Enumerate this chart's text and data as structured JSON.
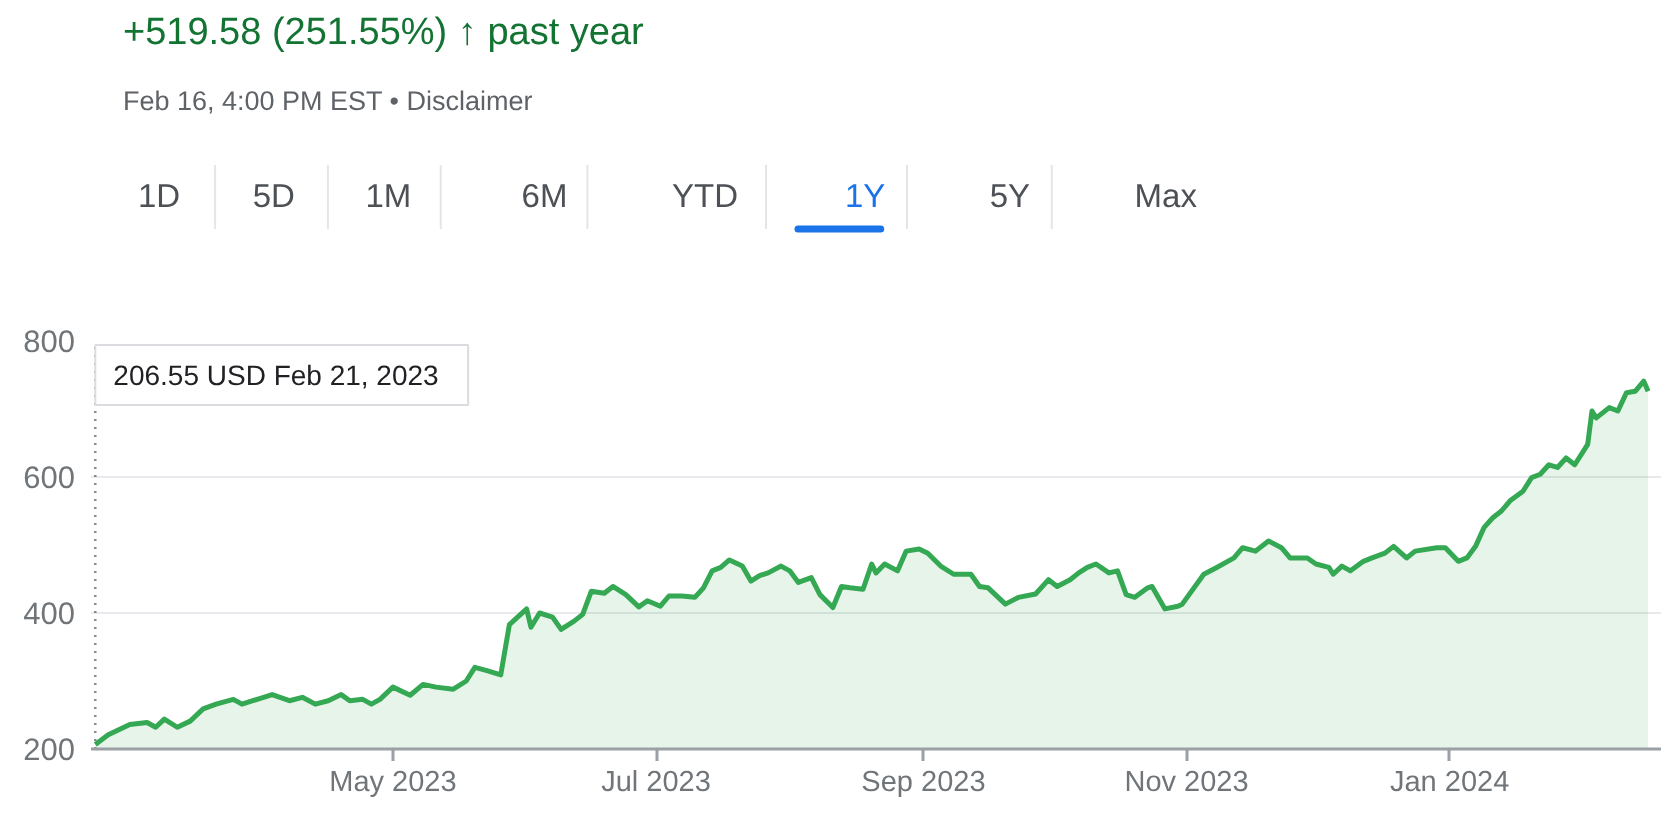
{
  "chart_data": {
    "type": "area",
    "title": "+519.58 (251.55%) ↑ past year",
    "subtitle": "Feb 16, 4:00 PM EST • Disclaimer",
    "annotations": [
      "1D",
      "5D",
      "1M",
      "6M",
      "YTD",
      "1Y",
      "5Y",
      "Max"
    ],
    "ref_lines": [
      {
        "axis": "x",
        "value": "2023-02-21",
        "label": "206.55 USD  Feb 21, 2023",
        "color": "#80868b",
        "line_style": "dotted"
      }
    ],
    "series": [
      {
        "color": "#34a853",
        "x": [
          "2023-02-21",
          "2023-02-24",
          "2023-03-01",
          "2023-03-05",
          "2023-03-07",
          "2023-03-09",
          "2023-03-12",
          "2023-03-15",
          "2023-03-18",
          "2023-03-21",
          "2023-03-25",
          "2023-03-27",
          "2023-04-01",
          "2023-04-03",
          "2023-04-07",
          "2023-04-10",
          "2023-04-13",
          "2023-04-16",
          "2023-04-19",
          "2023-04-21",
          "2023-04-24",
          "2023-04-26",
          "2023-04-28",
          "2023-05-01",
          "2023-05-05",
          "2023-05-08",
          "2023-05-11",
          "2023-05-15",
          "2023-05-18",
          "2023-05-20",
          "2023-05-23",
          "2023-05-26",
          "2023-05-28",
          "2023-06-01",
          "2023-06-02",
          "2023-06-04",
          "2023-06-07",
          "2023-06-09",
          "2023-06-12",
          "2023-06-14",
          "2023-06-16",
          "2023-06-19",
          "2023-06-21",
          "2023-06-24",
          "2023-06-27",
          "2023-06-29",
          "2023-07-02",
          "2023-07-04",
          "2023-07-07",
          "2023-07-10",
          "2023-07-12",
          "2023-07-14",
          "2023-07-16",
          "2023-07-18",
          "2023-07-21",
          "2023-07-23",
          "2023-07-25",
          "2023-07-27",
          "2023-07-30",
          "2023-08-01",
          "2023-08-03",
          "2023-08-06",
          "2023-08-08",
          "2023-08-11",
          "2023-08-13",
          "2023-08-15",
          "2023-08-18",
          "2023-08-20",
          "2023-08-21",
          "2023-08-23",
          "2023-08-26",
          "2023-08-28",
          "2023-08-31",
          "2023-09-02",
          "2023-09-05",
          "2023-09-08",
          "2023-09-12",
          "2023-09-14",
          "2023-09-16",
          "2023-09-20",
          "2023-09-23",
          "2023-09-27",
          "2023-09-30",
          "2023-10-02",
          "2023-10-05",
          "2023-10-07",
          "2023-10-09",
          "2023-10-11",
          "2023-10-14",
          "2023-10-16",
          "2023-10-18",
          "2023-10-20",
          "2023-10-23",
          "2023-10-24",
          "2023-10-27",
          "2023-10-30",
          "2023-10-31",
          "2023-11-05",
          "2023-11-08",
          "2023-11-12",
          "2023-11-14",
          "2023-11-17",
          "2023-11-20",
          "2023-11-23",
          "2023-11-25",
          "2023-11-29",
          "2023-12-01",
          "2023-12-04",
          "2023-12-05",
          "2023-12-07",
          "2023-12-09",
          "2023-12-12",
          "2023-12-14",
          "2023-12-17",
          "2023-12-19",
          "2023-12-22",
          "2023-12-24",
          "2023-12-29",
          "2023-12-31",
          "2024-01-03",
          "2024-01-05",
          "2024-01-07",
          "2024-01-09",
          "2024-01-11",
          "2024-01-13",
          "2024-01-15",
          "2024-01-18",
          "2024-01-20",
          "2024-01-22",
          "2024-01-24",
          "2024-01-26",
          "2024-01-28",
          "2024-01-30",
          "2024-02-02",
          "2024-02-03",
          "2024-02-04",
          "2024-02-07",
          "2024-02-09",
          "2024-02-11",
          "2024-02-13",
          "2024-02-15",
          "2024-02-16"
        ],
        "values": [
          206.55,
          221,
          236,
          239,
          232,
          244,
          232,
          241,
          259,
          266,
          273,
          266,
          276,
          280,
          271,
          276,
          266,
          271,
          280,
          271,
          273,
          266,
          273,
          291,
          279,
          295,
          291,
          288,
          300,
          320,
          315,
          309,
          383,
          406,
          379,
          400,
          394,
          376,
          388,
          398,
          432,
          429,
          439,
          427,
          409,
          418,
          410,
          425,
          425,
          423,
          437,
          462,
          467,
          478,
          469,
          447,
          455,
          459,
          469,
          462,
          445,
          452,
          427,
          408,
          439,
          437,
          435,
          472,
          459,
          472,
          462,
          491,
          494,
          488,
          469,
          457,
          457,
          439,
          437,
          413,
          423,
          428,
          449,
          439,
          449,
          459,
          467,
          472,
          459,
          462,
          427,
          423,
          437,
          439,
          406,
          410,
          413,
          457,
          467,
          481,
          496,
          491,
          506,
          496,
          481,
          481,
          472,
          467,
          457,
          469,
          462,
          476,
          481,
          488,
          498,
          481,
          491,
          496,
          496,
          476,
          481,
          498,
          526,
          540,
          550,
          565,
          579,
          599,
          604,
          618,
          614,
          628,
          618,
          648,
          697,
          687,
          702,
          697,
          724,
          726,
          741,
          726
        ]
      }
    ],
    "xlim": [
      "2023-02-20",
      "2024-02-19"
    ],
    "xticks": [
      {
        "value": "2023-05-01",
        "label": "May 2023"
      },
      {
        "value": "2023-07-01",
        "label": "Jul 2023"
      },
      {
        "value": "2023-09-01",
        "label": "Sep 2023"
      },
      {
        "value": "2023-11-01",
        "label": "Nov 2023"
      },
      {
        "value": "2024-01-01",
        "label": "Jan 2024"
      }
    ],
    "ylim": [
      200,
      800
    ],
    "yticks": [
      200,
      400,
      600,
      800
    ],
    "grid": "y"
  }
}
